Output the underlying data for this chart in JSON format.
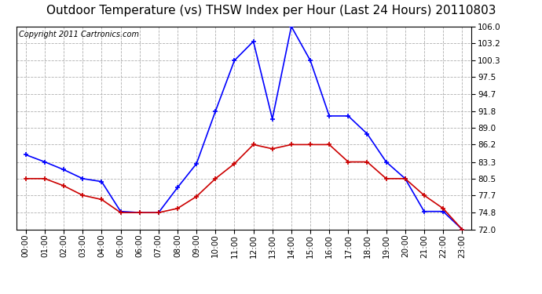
{
  "title": "Outdoor Temperature (vs) THSW Index per Hour (Last 24 Hours) 20110803",
  "copyright": "Copyright 2011 Cartronics.com",
  "hours": [
    "00:00",
    "01:00",
    "02:00",
    "03:00",
    "04:00",
    "05:00",
    "06:00",
    "07:00",
    "08:00",
    "09:00",
    "10:00",
    "11:00",
    "12:00",
    "13:00",
    "14:00",
    "15:00",
    "16:00",
    "17:00",
    "18:00",
    "19:00",
    "20:00",
    "21:00",
    "22:00",
    "23:00"
  ],
  "thsw": [
    84.5,
    83.3,
    82.0,
    80.5,
    80.0,
    75.0,
    74.8,
    74.8,
    79.0,
    83.0,
    91.8,
    100.3,
    103.5,
    90.5,
    106.0,
    100.3,
    91.0,
    91.0,
    88.0,
    83.3,
    80.5,
    75.0,
    75.0,
    72.0
  ],
  "temp": [
    80.5,
    80.5,
    79.3,
    77.7,
    77.0,
    74.8,
    74.8,
    74.8,
    75.5,
    77.5,
    80.5,
    83.0,
    86.2,
    85.5,
    86.2,
    86.2,
    86.2,
    83.3,
    83.3,
    80.5,
    80.5,
    77.7,
    75.5,
    72.0
  ],
  "ylim": [
    72.0,
    106.0
  ],
  "yticks": [
    72.0,
    74.8,
    77.7,
    80.5,
    83.3,
    86.2,
    89.0,
    91.8,
    94.7,
    97.5,
    100.3,
    103.2,
    106.0
  ],
  "thsw_color": "#0000ff",
  "temp_color": "#cc0000",
  "bg_color": "#ffffff",
  "grid_color": "#b0b0b0",
  "title_fontsize": 11,
  "copyright_fontsize": 7,
  "tick_fontsize": 7.5,
  "ytick_fontsize": 7.5
}
